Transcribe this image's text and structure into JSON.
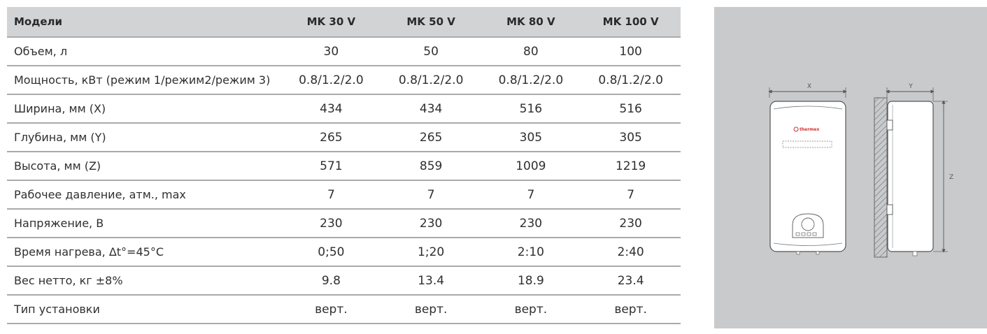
{
  "table": {
    "headers": [
      "Модели",
      "MK 30 V",
      "MK 50 V",
      "MK 80 V",
      "MK 100 V"
    ],
    "rows": [
      {
        "label": "Объем, л",
        "values": [
          "30",
          "50",
          "80",
          "100"
        ]
      },
      {
        "label": "Мощность, кВт (режим 1/режим2/режим 3)",
        "values": [
          "0.8/1.2/2.0",
          "0.8/1.2/2.0",
          "0.8/1.2/2.0",
          "0.8/1.2/2.0"
        ]
      },
      {
        "label": "Ширина, мм (X)",
        "values": [
          "434",
          "434",
          "516",
          "516"
        ]
      },
      {
        "label": "Глубина, мм (Y)",
        "values": [
          "265",
          "265",
          "305",
          "305"
        ]
      },
      {
        "label": "Высота, мм (Z)",
        "values": [
          "571",
          "859",
          "1009",
          "1219"
        ]
      },
      {
        "label": "Рабочее давление, атм., max",
        "values": [
          "7",
          "7",
          "7",
          "7"
        ]
      },
      {
        "label": "Напряжение, В",
        "values": [
          "230",
          "230",
          "230",
          "230"
        ]
      },
      {
        "label": "Время нагрева, Δt°=45°С",
        "values": [
          "0;50",
          "1;20",
          "2:10",
          "2:40"
        ]
      },
      {
        "label": "Вес нетто, кг ±8%",
        "values": [
          "9.8",
          "13.4",
          "18.9",
          "23.4"
        ]
      },
      {
        "label": "Тип установки",
        "values": [
          "верт.",
          "верт.",
          "верт.",
          "верт."
        ]
      }
    ]
  },
  "diagram": {
    "dim_x": "X",
    "dim_y": "Y",
    "dim_z": "Z",
    "brand": "thermex"
  },
  "colors": {
    "header_bg": "#d2d3d5",
    "row_divider": "#a9aaac",
    "panel_bg": "#c9cacc",
    "brand": "#d0312d"
  }
}
